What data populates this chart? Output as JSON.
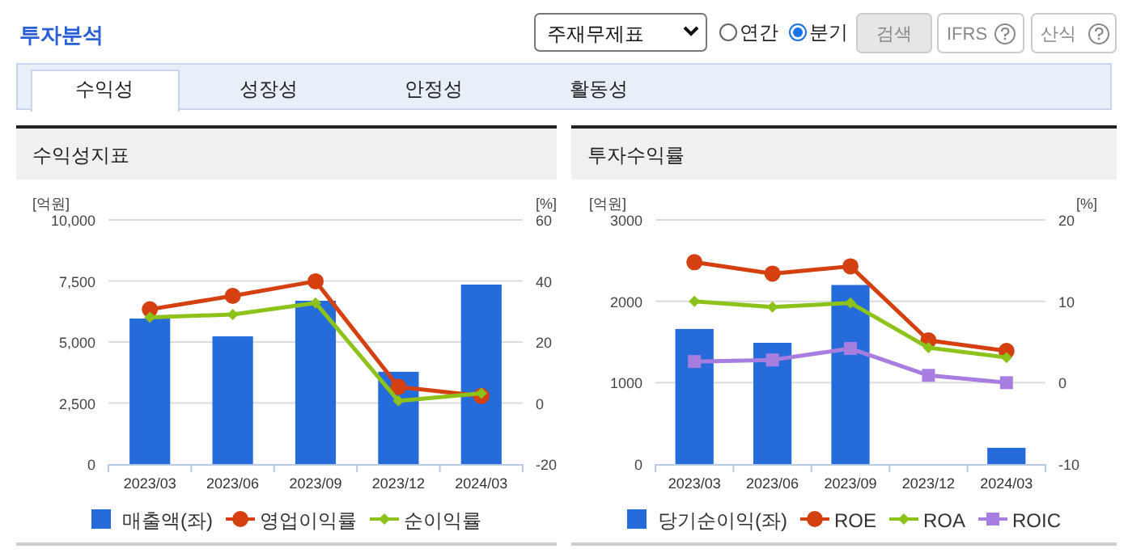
{
  "chart_data": [
    {
      "type": "other",
      "title": "투자분석",
      "annotations": [
        "주재무제표",
        "연간",
        "분기",
        "검색",
        "IFRS",
        "산식",
        "수익성",
        "성장성",
        "안정성",
        "활동성"
      ]
    },
    {
      "type": "bar",
      "title": "수익성지표",
      "ylabel": "[억원]",
      "y2label": "[%]",
      "categories": [
        "2023/03",
        "2023/06",
        "2023/09",
        "2023/12",
        "2024/03"
      ],
      "ylim": [
        0,
        10000
      ],
      "yticks": [
        0,
        {
          "value": 2500,
          "label": "2,500"
        },
        {
          "value": 5000,
          "label": "5,000"
        },
        {
          "value": 7500,
          "label": "7,500"
        },
        {
          "value": 10000,
          "label": "10,000"
        }
      ],
      "y2lim": [
        -20,
        60
      ],
      "y2ticks": [
        -20,
        0,
        20,
        40,
        60
      ],
      "grid": "y",
      "legend": "bottom",
      "series": [
        {
          "name": "매출액(좌)",
          "type": "bar",
          "color": "#256bd9",
          "values": [
            5960,
            5230,
            6690,
            3780,
            7350
          ]
        },
        {
          "name": "영업이익률",
          "type": "line",
          "axis": "y2",
          "marker": "circle",
          "color": "#d4400f",
          "values": [
            30.7,
            35.1,
            39.9,
            5.3,
            2.3
          ]
        },
        {
          "name": "순이익률",
          "type": "line",
          "axis": "y2",
          "marker": "diamond",
          "color": "#8cc21a",
          "values": [
            28.1,
            29.0,
            32.8,
            0.7,
            3.2
          ]
        }
      ]
    },
    {
      "type": "bar",
      "title": "투자수익률",
      "ylabel": "[억원]",
      "y2label": "[%]",
      "categories": [
        "2023/03",
        "2023/06",
        "2023/09",
        "2023/12",
        "2024/03"
      ],
      "ylim": [
        0,
        3000
      ],
      "yticks": [
        0,
        1000,
        2000,
        3000
      ],
      "y2lim": [
        -10,
        20
      ],
      "y2ticks": [
        -10,
        0,
        10,
        20
      ],
      "grid": "y",
      "legend": "bottom",
      "series": [
        {
          "name": "당기순이익(좌)",
          "type": "bar",
          "color": "#256bd9",
          "values": [
            1660,
            1490,
            2200,
            null,
            200
          ]
        },
        {
          "name": "ROE",
          "type": "line",
          "axis": "y2",
          "marker": "circle",
          "color": "#d4400f",
          "values": [
            14.8,
            13.4,
            14.3,
            5.2,
            3.9
          ]
        },
        {
          "name": "ROA",
          "type": "line",
          "axis": "y2",
          "marker": "diamond",
          "color": "#8cc21a",
          "values": [
            10.0,
            9.3,
            9.8,
            4.3,
            3.1
          ]
        },
        {
          "name": "ROIC",
          "type": "line",
          "axis": "y2",
          "marker": "square",
          "color": "#a77ee0",
          "values": [
            2.6,
            2.8,
            4.2,
            0.9,
            0.0
          ]
        }
      ]
    }
  ]
}
